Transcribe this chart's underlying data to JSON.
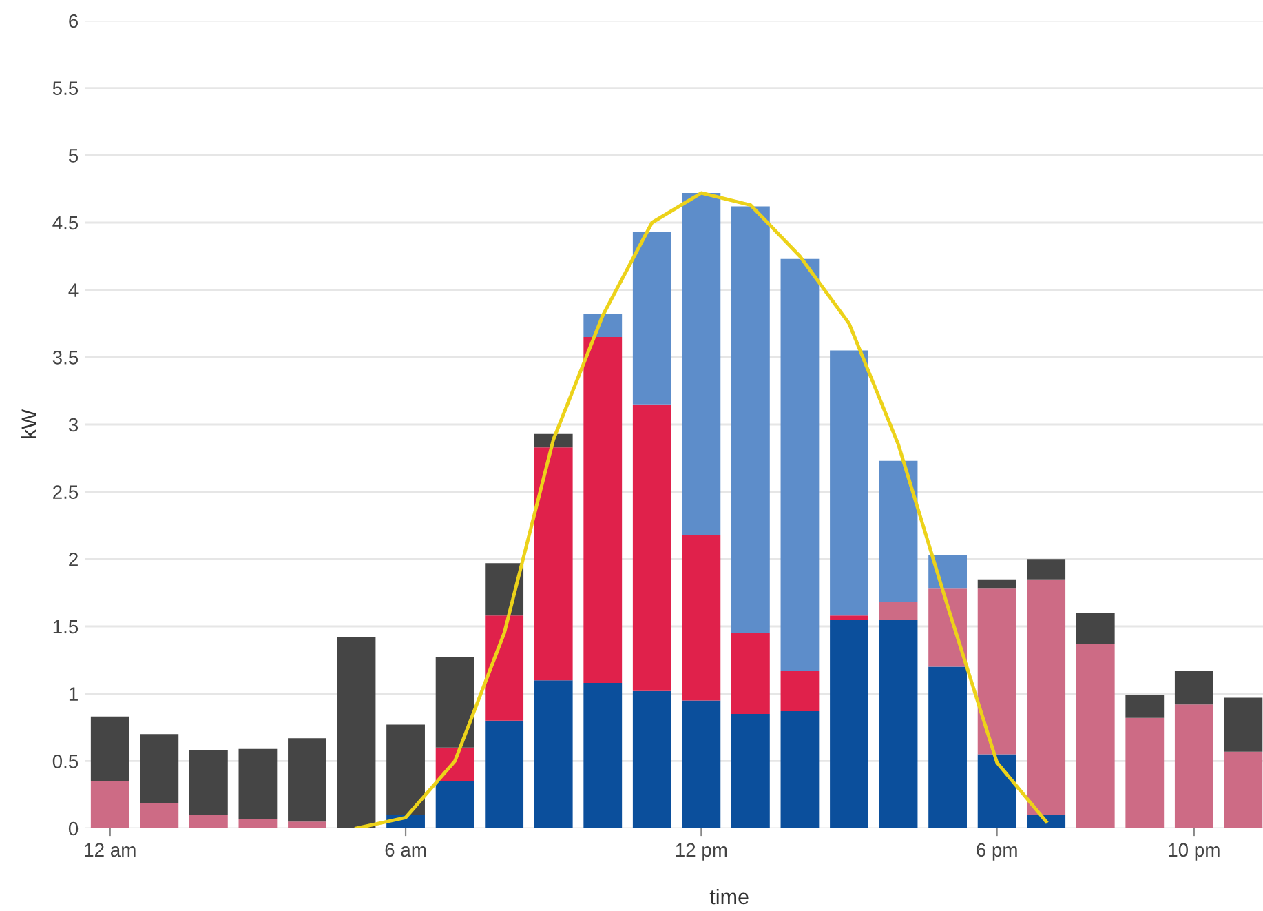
{
  "chart_data": {
    "type": "bar",
    "stacked": true,
    "xlabel": "time",
    "ylabel": "kW",
    "categories": [
      "12 am",
      null,
      null,
      null,
      null,
      null,
      "6 am",
      null,
      null,
      null,
      null,
      null,
      "12 pm",
      null,
      null,
      null,
      null,
      null,
      "6 pm",
      null,
      null,
      null,
      "10 pm",
      null
    ],
    "ylim": [
      0,
      6
    ],
    "yticks": [
      0,
      {
        "value": 0.5,
        "label": "0.5"
      },
      1,
      {
        "value": 1.5,
        "label": "1.5"
      },
      2,
      {
        "value": 2.5,
        "label": "2.5"
      },
      3,
      {
        "value": 3.5,
        "label": "3.5"
      },
      4,
      {
        "value": 4.5,
        "label": "4.5"
      },
      5,
      {
        "value": 5.5,
        "label": "5.5"
      },
      6
    ],
    "grid": "y",
    "series": [
      {
        "color": "#0b4f9c",
        "values": [
          null,
          null,
          null,
          null,
          null,
          null,
          0.1,
          0.35,
          0.8,
          1.1,
          1.08,
          1.02,
          0.95,
          0.85,
          0.87,
          1.55,
          1.55,
          1.2,
          0.55,
          0.1,
          null,
          null,
          null,
          null
        ]
      },
      {
        "color": "#e0214b",
        "values": [
          null,
          null,
          null,
          null,
          null,
          null,
          null,
          0.25,
          0.78,
          1.73,
          2.57,
          2.13,
          1.23,
          0.6,
          0.3,
          0.03,
          null,
          null,
          null,
          null,
          null,
          null,
          null,
          null
        ]
      },
      {
        "color": "#cd6b85",
        "values": [
          0.35,
          0.19,
          0.1,
          0.07,
          0.05,
          null,
          null,
          null,
          null,
          null,
          null,
          null,
          null,
          null,
          null,
          null,
          0.13,
          0.58,
          1.23,
          1.75,
          1.37,
          0.82,
          0.92,
          0.57
        ]
      },
      {
        "color": "#5d8dca",
        "values": [
          null,
          null,
          null,
          null,
          null,
          null,
          null,
          null,
          null,
          null,
          0.17,
          1.28,
          2.54,
          3.17,
          3.06,
          1.97,
          1.05,
          0.25,
          null,
          null,
          null,
          null,
          null,
          null
        ]
      },
      {
        "color": "#454545",
        "values": [
          0.48,
          0.51,
          0.48,
          0.52,
          0.62,
          1.42,
          0.67,
          0.67,
          0.39,
          0.1,
          null,
          null,
          null,
          null,
          null,
          null,
          null,
          null,
          0.07,
          0.15,
          0.23,
          0.17,
          0.25,
          0.4
        ]
      },
      {
        "type": "line",
        "color": "#ecd21a",
        "values": [
          null,
          null,
          null,
          null,
          null,
          0,
          0.08,
          0.5,
          1.45,
          2.89,
          3.81,
          4.5,
          4.72,
          4.63,
          4.25,
          3.75,
          2.85,
          1.65,
          0.49,
          0.05,
          null,
          null,
          null,
          null
        ]
      }
    ]
  }
}
